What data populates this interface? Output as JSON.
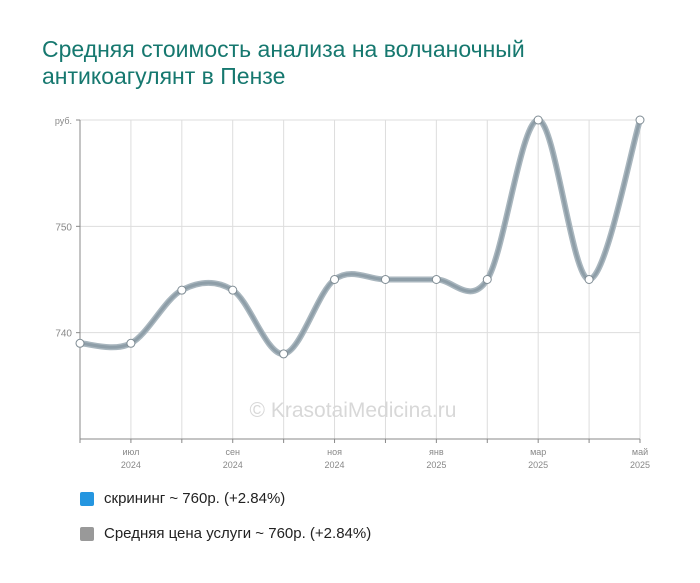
{
  "title_lines": [
    "Средняя стоимость анализа на волчаночный",
    "антикоагулянт в Пензе"
  ],
  "watermark": "© KrasotaiMedicina.ru",
  "colors": {
    "title": "#16786f",
    "line": "#8e9ea8",
    "grid": "#dddddd",
    "axis": "#888888",
    "series1": "#2596e0",
    "series2": "#999999"
  },
  "legend": [
    {
      "label": "скрининг ~ 760р. (+2.84%)",
      "color": "#2596e0"
    },
    {
      "label": "Средняя цена услуги ~ 760р. (+2.84%)",
      "color": "#999999"
    }
  ],
  "chart_data": {
    "type": "line",
    "y_unit": "руб.",
    "y_ticks": [
      740,
      750
    ],
    "ylim": [
      730,
      760
    ],
    "x_labels": [
      {
        "month": "июл",
        "year": "2024",
        "index": 1
      },
      {
        "month": "сен",
        "year": "2024",
        "index": 3
      },
      {
        "month": "ноя",
        "year": "2024",
        "index": 5
      },
      {
        "month": "янв",
        "year": "2025",
        "index": 7
      },
      {
        "month": "мар",
        "year": "2025",
        "index": 9
      },
      {
        "month": "май",
        "year": "2025",
        "index": 11
      }
    ],
    "x": [
      "2024-06",
      "2024-07",
      "2024-08",
      "2024-09",
      "2024-10",
      "2024-11",
      "2024-12",
      "2025-01",
      "2025-02",
      "2025-03",
      "2025-04",
      "2025-05"
    ],
    "series": [
      {
        "name": "Средняя цена услуги",
        "values": [
          739,
          739,
          744,
          744,
          738,
          745,
          745,
          745,
          745,
          760,
          745,
          760
        ]
      }
    ],
    "grid": true
  }
}
